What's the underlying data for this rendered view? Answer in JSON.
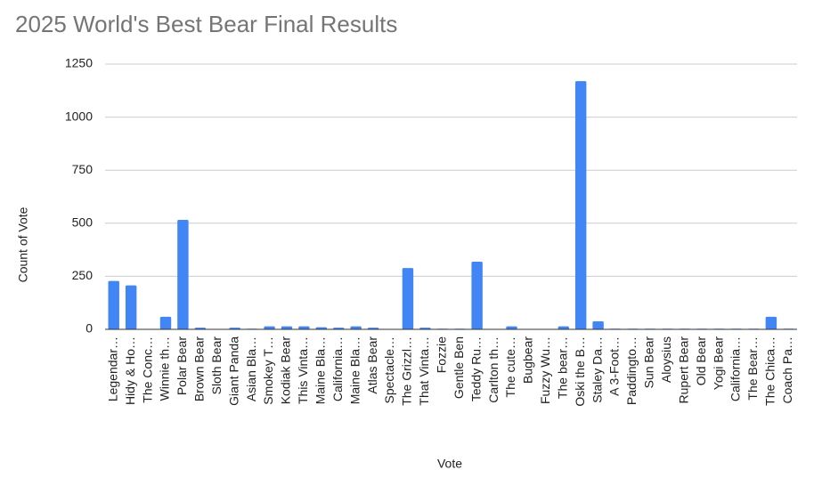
{
  "chart_data": {
    "type": "bar",
    "title": "2025 World's Best Bear Final Results",
    "x_label": "Vote",
    "y_label": "Count of Vote",
    "categories": [
      "Legendar…",
      "Hidy & Ho…",
      "The Conc…",
      "Winnie th…",
      "Polar Bear",
      "Brown Bear",
      "Sloth Bear",
      "Giant Panda",
      "Asian Bla…",
      "Smokey T…",
      "Kodiak Bear",
      "This Vinta…",
      "Maine Bla…",
      "California…",
      "Maine Bla…",
      "Atlas Bear",
      "Spectacle…",
      "The Grizzl…",
      "That Vinta…",
      "Fozzie",
      "Gentle Ben",
      "Teddy Ru…",
      "Carlton th…",
      "The cute…",
      "Bugbear",
      "Fuzzy Wu…",
      "The bear…",
      "Oski the B…",
      "Staley Da…",
      "A 3-Foot…",
      "Paddingto…",
      "Sun Bear",
      "Aloysius",
      "Rupert Bear",
      "Old Bear",
      "Yogi Bear",
      "California…",
      "The Bear…",
      "The Chica…",
      "Coach Pa…"
    ],
    "values": [
      228,
      207,
      2,
      59,
      516,
      8,
      2,
      8,
      3,
      14,
      14,
      14,
      10,
      8,
      14,
      8,
      2,
      289,
      8,
      3,
      3,
      319,
      2,
      14,
      2,
      2,
      14,
      1170,
      38,
      3,
      3,
      3,
      3,
      3,
      3,
      3,
      3,
      3,
      59,
      3
    ],
    "color": "#4285f4",
    "ylim": [
      0,
      1250
    ],
    "yticks": [
      0,
      250,
      500,
      750,
      1000,
      1250
    ],
    "grid": true
  }
}
